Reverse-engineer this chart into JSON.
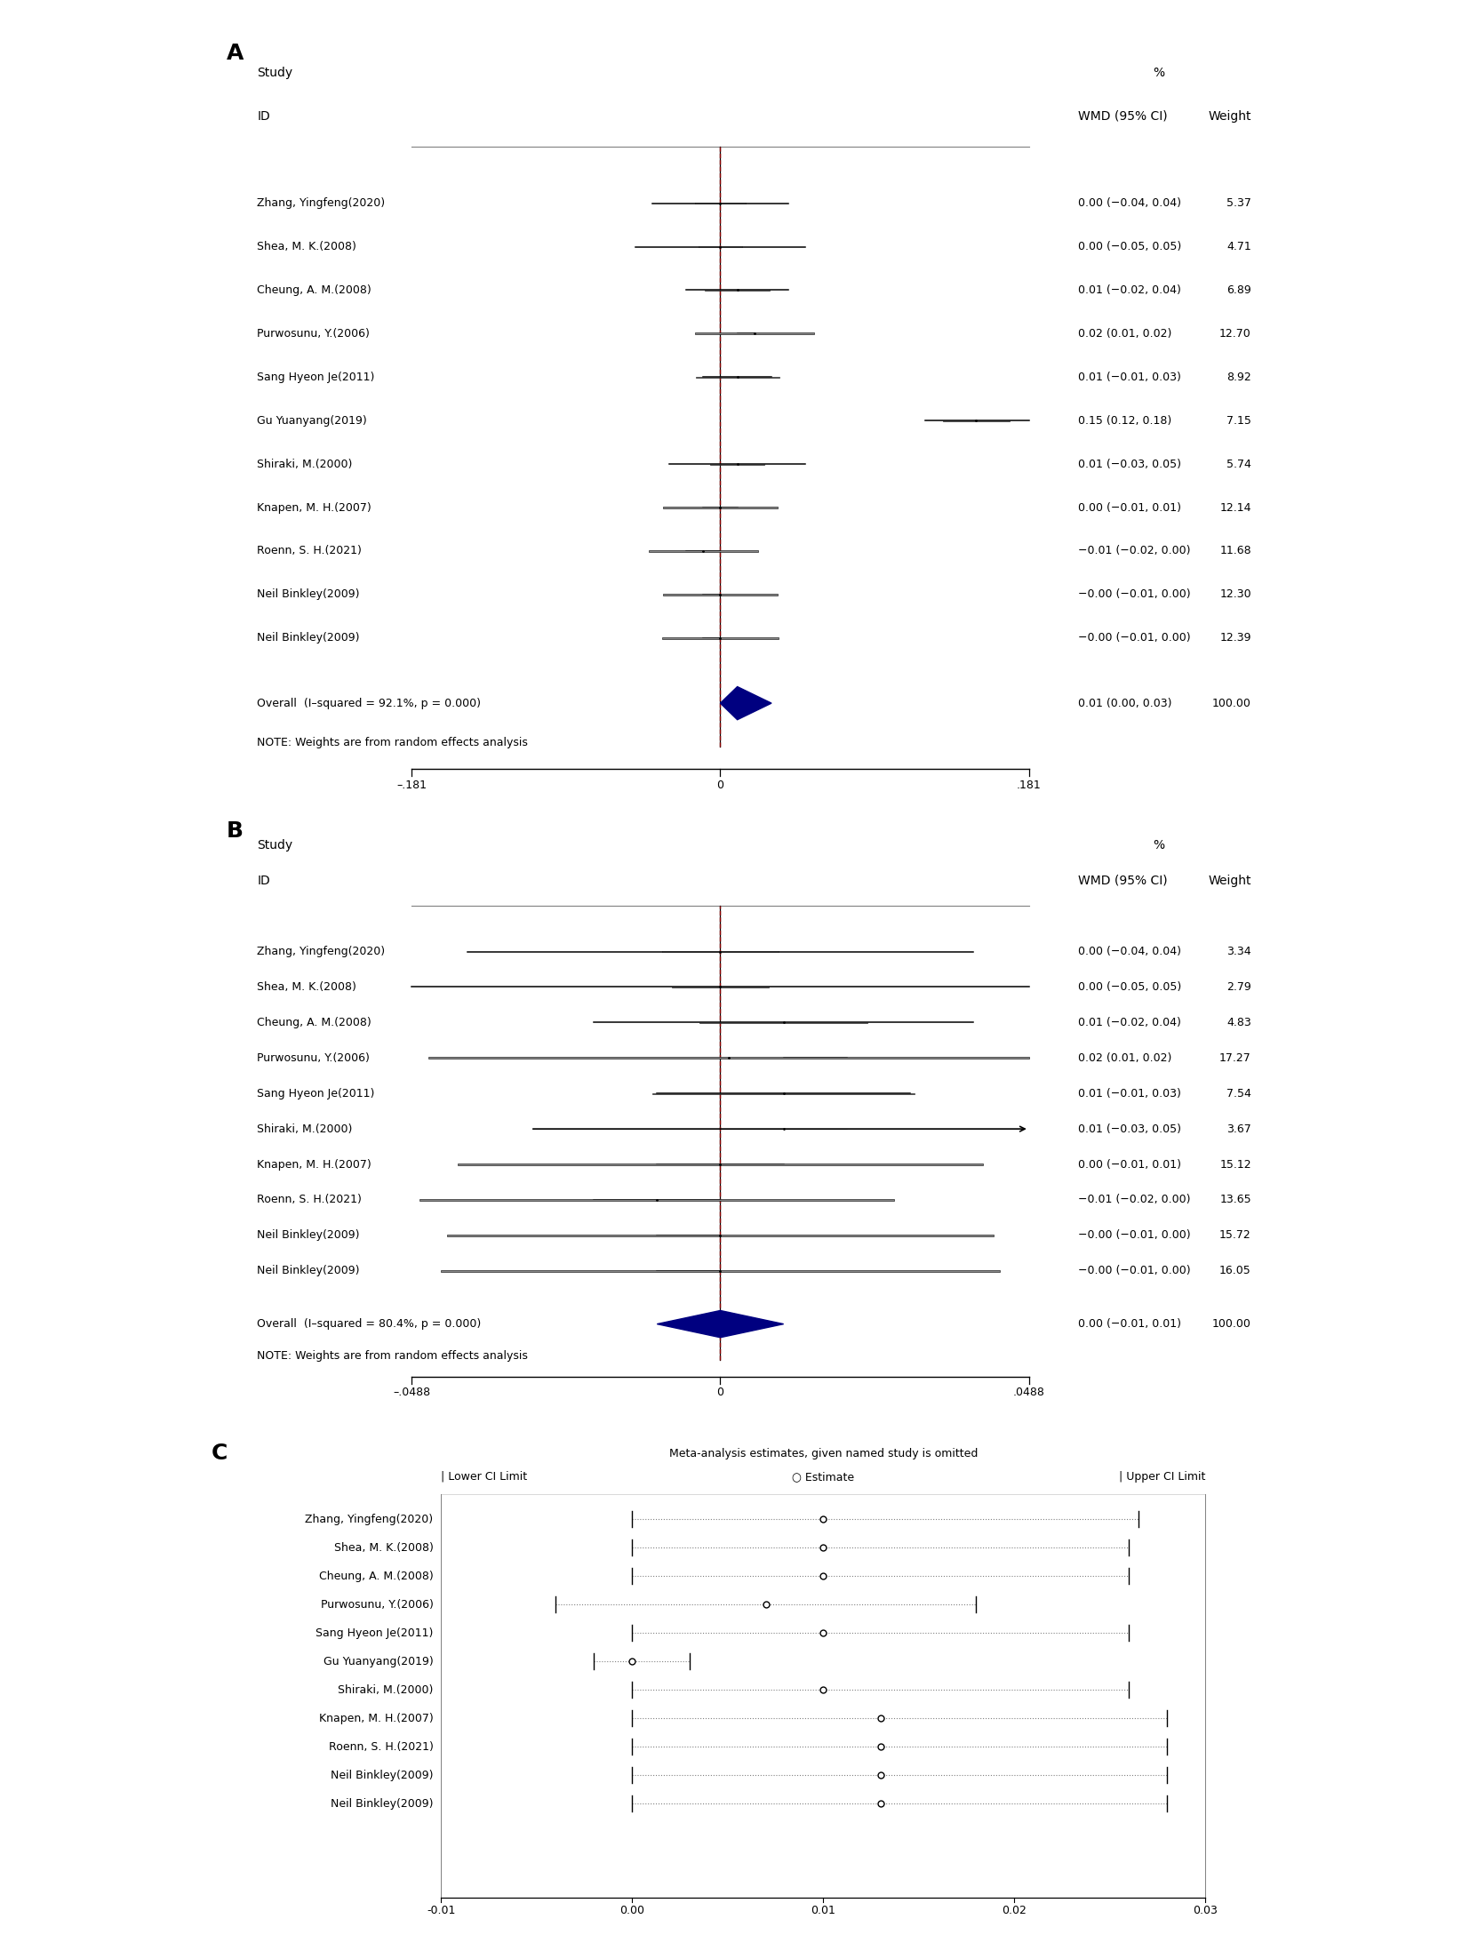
{
  "panel_A": {
    "studies": [
      {
        "label": "Zhang, Yingfeng(2020)",
        "wmd": 0.0,
        "ci_low": -0.04,
        "ci_high": 0.04,
        "wmd_text": "0.00 (−0.04, 0.04)",
        "weight": "5.37"
      },
      {
        "label": "Shea, M. K.(2008)",
        "wmd": 0.0,
        "ci_low": -0.05,
        "ci_high": 0.05,
        "wmd_text": "0.00 (−0.05, 0.05)",
        "weight": "4.71"
      },
      {
        "label": "Cheung, A. M.(2008)",
        "wmd": 0.01,
        "ci_low": -0.02,
        "ci_high": 0.04,
        "wmd_text": "0.01 (−0.02, 0.04)",
        "weight": "6.89"
      },
      {
        "label": "Purwosunu, Y.(2006)",
        "wmd": 0.02,
        "ci_low": 0.01,
        "ci_high": 0.02,
        "wmd_text": "0.02 (0.01, 0.02)",
        "weight": "12.70"
      },
      {
        "label": "Sang Hyeon Je(2011)",
        "wmd": 0.01,
        "ci_low": -0.01,
        "ci_high": 0.03,
        "wmd_text": "0.01 (−0.01, 0.03)",
        "weight": "8.92"
      },
      {
        "label": "Gu Yuanyang(2019)",
        "wmd": 0.15,
        "ci_low": 0.12,
        "ci_high": 0.181,
        "wmd_text": "0.15 (0.12, 0.18)",
        "weight": "7.15",
        "clamp_right": true
      },
      {
        "label": "Shiraki, M.(2000)",
        "wmd": 0.01,
        "ci_low": -0.03,
        "ci_high": 0.05,
        "wmd_text": "0.01 (−0.03, 0.05)",
        "weight": "5.74"
      },
      {
        "label": "Knapen, M. H.(2007)",
        "wmd": 0.0,
        "ci_low": -0.01,
        "ci_high": 0.01,
        "wmd_text": "0.00 (−0.01, 0.01)",
        "weight": "12.14"
      },
      {
        "label": "Roenn, S. H.(2021)",
        "wmd": -0.01,
        "ci_low": -0.02,
        "ci_high": 0.0,
        "wmd_text": "−0.01 (−0.02, 0.00)",
        "weight": "11.68"
      },
      {
        "label": "Neil Binkley(2009)",
        "wmd": -0.0,
        "ci_low": -0.01,
        "ci_high": 0.0,
        "wmd_text": "−0.00 (−0.01, 0.00)",
        "weight": "12.30"
      },
      {
        "label": "Neil Binkley(2009)",
        "wmd": -0.0,
        "ci_low": -0.01,
        "ci_high": 0.0,
        "wmd_text": "−0.00 (−0.01, 0.00)",
        "weight": "12.39"
      }
    ],
    "overall": {
      "wmd": 0.01,
      "ci_low": 0.0,
      "ci_high": 0.03,
      "wmd_text": "0.01 (0.00, 0.03)",
      "weight": "100.00",
      "label": "Overall  (I–squared = 92.1%, p = 0.000)"
    },
    "note": "NOTE: Weights are from random effects analysis",
    "xlim": [
      -0.181,
      0.181
    ],
    "xticks": [
      -0.181,
      0,
      0.181
    ],
    "xticklabels": [
      "–.181",
      "0",
      ".181"
    ]
  },
  "panel_B": {
    "studies": [
      {
        "label": "Zhang, Yingfeng(2020)",
        "wmd": 0.0,
        "ci_low": -0.04,
        "ci_high": 0.04,
        "wmd_text": "0.00 (−0.04, 0.04)",
        "weight": "3.34"
      },
      {
        "label": "Shea, M. K.(2008)",
        "wmd": 0.0,
        "ci_low": -0.05,
        "ci_high": 0.05,
        "wmd_text": "0.00 (−0.05, 0.05)",
        "weight": "2.79"
      },
      {
        "label": "Cheung, A. M.(2008)",
        "wmd": 0.01,
        "ci_low": -0.02,
        "ci_high": 0.04,
        "wmd_text": "0.01 (−0.02, 0.04)",
        "weight": "4.83"
      },
      {
        "label": "Purwosunu, Y.(2006)",
        "wmd": 0.02,
        "ci_low": 0.01,
        "ci_high": 0.02,
        "wmd_text": "0.02 (0.01, 0.02)",
        "weight": "17.27"
      },
      {
        "label": "Sang Hyeon Je(2011)",
        "wmd": 0.01,
        "ci_low": -0.01,
        "ci_high": 0.03,
        "wmd_text": "0.01 (−0.01, 0.03)",
        "weight": "7.54"
      },
      {
        "label": "Shiraki, M.(2000)",
        "wmd": 0.01,
        "ci_low": -0.03,
        "ci_high": 0.0488,
        "wmd_text": "0.01 (−0.03, 0.05)",
        "weight": "3.67",
        "arrow": true
      },
      {
        "label": "Knapen, M. H.(2007)",
        "wmd": 0.0,
        "ci_low": -0.01,
        "ci_high": 0.01,
        "wmd_text": "0.00 (−0.01, 0.01)",
        "weight": "15.12"
      },
      {
        "label": "Roenn, S. H.(2021)",
        "wmd": -0.01,
        "ci_low": -0.02,
        "ci_high": 0.0,
        "wmd_text": "−0.01 (−0.02, 0.00)",
        "weight": "13.65"
      },
      {
        "label": "Neil Binkley(2009)",
        "wmd": -0.0,
        "ci_low": -0.01,
        "ci_high": 0.0,
        "wmd_text": "−0.00 (−0.01, 0.00)",
        "weight": "15.72"
      },
      {
        "label": "Neil Binkley(2009)",
        "wmd": -0.0,
        "ci_low": -0.01,
        "ci_high": 0.0,
        "wmd_text": "−0.00 (−0.01, 0.00)",
        "weight": "16.05"
      }
    ],
    "overall": {
      "wmd": 0.0,
      "ci_low": -0.01,
      "ci_high": 0.01,
      "wmd_text": "0.00 (−0.01, 0.01)",
      "weight": "100.00",
      "label": "Overall  (I–squared = 80.4%, p = 0.000)"
    },
    "note": "NOTE: Weights are from random effects analysis",
    "xlim": [
      -0.0488,
      0.0488
    ],
    "xticks": [
      -0.0488,
      0,
      0.0488
    ],
    "xticklabels": [
      "–.0488",
      "0",
      ".0488"
    ]
  },
  "panel_C": {
    "title": "Meta-analysis estimates, given named study is omitted",
    "studies": [
      {
        "label": "Zhang, Yingfeng(2020)",
        "estimate": 0.01,
        "ci_low": 0.0,
        "ci_high": 0.0265
      },
      {
        "label": "Shea, M. K.(2008)",
        "estimate": 0.01,
        "ci_low": 0.0,
        "ci_high": 0.026
      },
      {
        "label": "Cheung, A. M.(2008)",
        "estimate": 0.01,
        "ci_low": 0.0,
        "ci_high": 0.026
      },
      {
        "label": "Purwosunu, Y.(2006)",
        "estimate": 0.007,
        "ci_low": -0.004,
        "ci_high": 0.018
      },
      {
        "label": "Sang Hyeon Je(2011)",
        "estimate": 0.01,
        "ci_low": 0.0,
        "ci_high": 0.026
      },
      {
        "label": "Gu Yuanyang(2019)",
        "estimate": 0.0,
        "ci_low": -0.002,
        "ci_high": 0.003
      },
      {
        "label": "Shiraki, M.(2000)",
        "estimate": 0.01,
        "ci_low": 0.0,
        "ci_high": 0.026
      },
      {
        "label": "Knapen, M. H.(2007)",
        "estimate": 0.013,
        "ci_low": 0.0,
        "ci_high": 0.028
      },
      {
        "label": "Roenn, S. H.(2021)",
        "estimate": 0.013,
        "ci_low": 0.0,
        "ci_high": 0.028
      },
      {
        "label": "Neil Binkley(2009)",
        "estimate": 0.013,
        "ci_low": 0.0,
        "ci_high": 0.028
      },
      {
        "label": "Neil Binkley(2009)",
        "estimate": 0.013,
        "ci_low": 0.0,
        "ci_high": 0.028
      }
    ],
    "xlim": [
      -0.01,
      0.03
    ],
    "xticks": [
      -0.01,
      0.0,
      0.01,
      0.02,
      0.03
    ],
    "xticklabels": [
      "-0.01",
      "0.00",
      "0.01",
      "0.02",
      "0.03"
    ]
  }
}
